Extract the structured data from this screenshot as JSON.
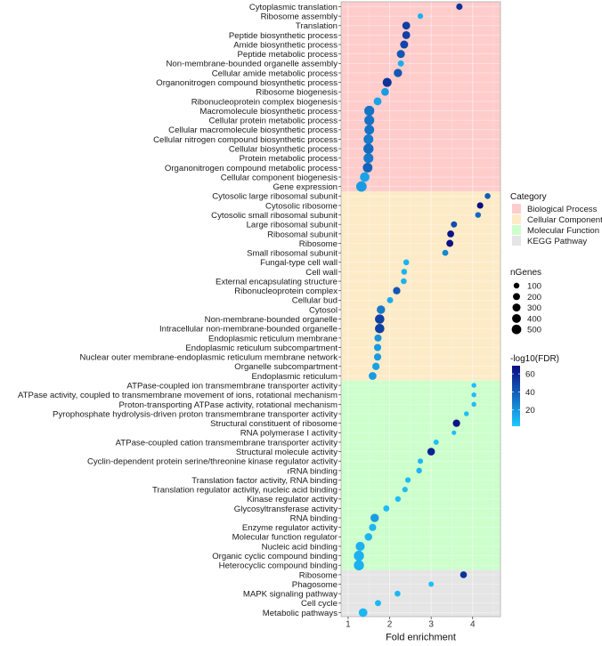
{
  "chart_data": {
    "type": "scatter",
    "title": "",
    "xlabel": "Fold enrichment",
    "ylabel": "",
    "xlim": [
      0.83,
      4.67
    ],
    "xticks": [
      1,
      2,
      3,
      4
    ],
    "grid": true,
    "categories": [
      {
        "name": "Biological Process",
        "color": "#ffcccc",
        "terms": [
          {
            "term": "Cytoplasmic translation",
            "fold": 3.68,
            "nGenes": 120,
            "log10FDR": 55
          },
          {
            "term": "Ribosome assembly",
            "fold": 2.74,
            "nGenes": 70,
            "log10FDR": 10
          },
          {
            "term": "Translation",
            "fold": 2.4,
            "nGenes": 250,
            "log10FDR": 50
          },
          {
            "term": "Peptide biosynthetic process",
            "fold": 2.4,
            "nGenes": 250,
            "log10FDR": 50
          },
          {
            "term": "Amide biosynthetic process",
            "fold": 2.35,
            "nGenes": 260,
            "log10FDR": 48
          },
          {
            "term": "Peptide metabolic process",
            "fold": 2.27,
            "nGenes": 270,
            "log10FDR": 42
          },
          {
            "term": "Non-membrane-bounded organelle assembly",
            "fold": 2.27,
            "nGenes": 110,
            "log10FDR": 12
          },
          {
            "term": "Cellular amide metabolic process",
            "fold": 2.2,
            "nGenes": 290,
            "log10FDR": 42
          },
          {
            "term": "Organonitrogen compound biosynthetic process",
            "fold": 1.94,
            "nGenes": 370,
            "log10FDR": 55
          },
          {
            "term": "Ribosome biogenesis",
            "fold": 1.89,
            "nGenes": 230,
            "log10FDR": 18
          },
          {
            "term": "Ribonucleoprotein complex biogenesis",
            "fold": 1.71,
            "nGenes": 250,
            "log10FDR": 15
          },
          {
            "term": "Macromolecule biosynthetic process",
            "fold": 1.51,
            "nGenes": 510,
            "log10FDR": 32
          },
          {
            "term": "Cellular protein metabolic process",
            "fold": 1.51,
            "nGenes": 490,
            "log10FDR": 32
          },
          {
            "term": "Cellular macromolecule biosynthetic process",
            "fold": 1.51,
            "nGenes": 460,
            "log10FDR": 32
          },
          {
            "term": "Cellular nitrogen compound biosynthetic process",
            "fold": 1.49,
            "nGenes": 470,
            "log10FDR": 30
          },
          {
            "term": "Cellular biosynthetic process",
            "fold": 1.49,
            "nGenes": 520,
            "log10FDR": 35
          },
          {
            "term": "Protein metabolic process",
            "fold": 1.49,
            "nGenes": 480,
            "log10FDR": 30
          },
          {
            "term": "Organonitrogen compound metabolic process",
            "fold": 1.47,
            "nGenes": 450,
            "log10FDR": 38
          },
          {
            "term": "Cellular component biogenesis",
            "fold": 1.4,
            "nGenes": 430,
            "log10FDR": 15
          },
          {
            "term": "Gene expression",
            "fold": 1.32,
            "nGenes": 560,
            "log10FDR": 18
          }
        ]
      },
      {
        "name": "Cellular Component",
        "color": "#fdebc8",
        "terms": [
          {
            "term": "Cytosolic large ribosomal subunit",
            "fold": 4.36,
            "nGenes": 90,
            "log10FDR": 40
          },
          {
            "term": "Cytosolic ribosome",
            "fold": 4.18,
            "nGenes": 120,
            "log10FDR": 68
          },
          {
            "term": "Cytosolic small ribosomal subunit",
            "fold": 4.13,
            "nGenes": 80,
            "log10FDR": 35
          },
          {
            "term": "Large ribosomal subunit",
            "fold": 3.55,
            "nGenes": 110,
            "log10FDR": 45
          },
          {
            "term": "Ribosomal subunit",
            "fold": 3.47,
            "nGenes": 160,
            "log10FDR": 65
          },
          {
            "term": "Ribosome",
            "fold": 3.45,
            "nGenes": 170,
            "log10FDR": 66
          },
          {
            "term": "Small ribosomal subunit",
            "fold": 3.34,
            "nGenes": 100,
            "log10FDR": 25
          },
          {
            "term": "Fungal-type cell wall",
            "fold": 2.4,
            "nGenes": 90,
            "log10FDR": 10
          },
          {
            "term": "Cell wall",
            "fold": 2.35,
            "nGenes": 90,
            "log10FDR": 10
          },
          {
            "term": "External encapsulating structure",
            "fold": 2.34,
            "nGenes": 90,
            "log10FDR": 10
          },
          {
            "term": "Ribonucleoprotein complex",
            "fold": 2.17,
            "nGenes": 200,
            "log10FDR": 42
          },
          {
            "term": "Cellular bud",
            "fold": 2.01,
            "nGenes": 110,
            "log10FDR": 12
          },
          {
            "term": "Cytosol",
            "fold": 1.79,
            "nGenes": 300,
            "log10FDR": 30
          },
          {
            "term": "Non-membrane-bounded organelle",
            "fold": 1.76,
            "nGenes": 420,
            "log10FDR": 50
          },
          {
            "term": "Intracellular non-membrane-bounded organelle",
            "fold": 1.76,
            "nGenes": 420,
            "log10FDR": 50
          },
          {
            "term": "Endoplasmic reticulum membrane",
            "fold": 1.72,
            "nGenes": 180,
            "log10FDR": 20
          },
          {
            "term": "Endoplasmic reticulum subcompartment",
            "fold": 1.71,
            "nGenes": 190,
            "log10FDR": 18
          },
          {
            "term": "Nuclear outer membrane-endoplasmic reticulum membrane network",
            "fold": 1.71,
            "nGenes": 190,
            "log10FDR": 18
          },
          {
            "term": "Organelle subcompartment",
            "fold": 1.67,
            "nGenes": 200,
            "log10FDR": 16
          },
          {
            "term": "Endoplasmic reticulum",
            "fold": 1.59,
            "nGenes": 240,
            "log10FDR": 18
          }
        ]
      },
      {
        "name": "Molecular Function",
        "color": "#ccffcc",
        "terms": [
          {
            "term": "ATPase-coupled ion transmembrane transporter activity",
            "fold": 4.03,
            "nGenes": 40,
            "log10FDR": 5
          },
          {
            "term": "ATPase activity, coupled to transmembrane movement of ions, rotational mechanism",
            "fold": 4.03,
            "nGenes": 40,
            "log10FDR": 5
          },
          {
            "term": "Proton-transporting ATPase activity, rotational mechanism",
            "fold": 4.03,
            "nGenes": 40,
            "log10FDR": 5
          },
          {
            "term": "Pyrophosphate hydrolysis-driven proton transmembrane transporter activity",
            "fold": 3.85,
            "nGenes": 40,
            "log10FDR": 5
          },
          {
            "term": "Structural constituent of ribosome",
            "fold": 3.61,
            "nGenes": 200,
            "log10FDR": 65
          },
          {
            "term": "RNA polymerase I activity",
            "fold": 3.55,
            "nGenes": 30,
            "log10FDR": 5
          },
          {
            "term": "ATPase-coupled cation transmembrane transporter activity",
            "fold": 3.12,
            "nGenes": 60,
            "log10FDR": 6
          },
          {
            "term": "Structural molecule activity",
            "fold": 3.0,
            "nGenes": 220,
            "log10FDR": 60
          },
          {
            "term": "Cyclin-dependent protein serine/threonine kinase regulator activity",
            "fold": 2.74,
            "nGenes": 60,
            "log10FDR": 8
          },
          {
            "term": "rRNA binding",
            "fold": 2.71,
            "nGenes": 80,
            "log10FDR": 8
          },
          {
            "term": "Translation factor activity, RNA binding",
            "fold": 2.44,
            "nGenes": 70,
            "log10FDR": 6
          },
          {
            "term": "Translation regulator activity, nucleic acid binding",
            "fold": 2.37,
            "nGenes": 70,
            "log10FDR": 6
          },
          {
            "term": "Kinase regulator activity",
            "fold": 2.2,
            "nGenes": 80,
            "log10FDR": 6
          },
          {
            "term": "Glycosyltransferase activity",
            "fold": 1.92,
            "nGenes": 110,
            "log10FDR": 6
          },
          {
            "term": "RNA binding",
            "fold": 1.64,
            "nGenes": 300,
            "log10FDR": 18
          },
          {
            "term": "Enzyme regulator activity",
            "fold": 1.59,
            "nGenes": 190,
            "log10FDR": 8
          },
          {
            "term": "Molecular function regulator",
            "fold": 1.49,
            "nGenes": 220,
            "log10FDR": 8
          },
          {
            "term": "Nucleic acid binding",
            "fold": 1.29,
            "nGenes": 380,
            "log10FDR": 10
          },
          {
            "term": "Organic cyclic compound binding",
            "fold": 1.26,
            "nGenes": 520,
            "log10FDR": 10
          },
          {
            "term": "Heterocyclic compound binding",
            "fold": 1.26,
            "nGenes": 520,
            "log10FDR": 10
          }
        ]
      },
      {
        "name": "KEGG Pathway",
        "color": "#e5e5e5",
        "terms": [
          {
            "term": "Ribosome",
            "fold": 3.78,
            "nGenes": 150,
            "log10FDR": 55
          },
          {
            "term": "Phagosome",
            "fold": 3.0,
            "nGenes": 60,
            "log10FDR": 5
          },
          {
            "term": "MAPK signaling pathway",
            "fold": 2.19,
            "nGenes": 90,
            "log10FDR": 8
          },
          {
            "term": "Cell cycle",
            "fold": 1.72,
            "nGenes": 110,
            "log10FDR": 8
          },
          {
            "term": "Metabolic pathways",
            "fold": 1.36,
            "nGenes": 330,
            "log10FDR": 8
          }
        ]
      }
    ],
    "legend": {
      "placement": "right",
      "category_title": "Category",
      "size_title": "nGenes",
      "size_values": [
        100,
        200,
        300,
        400,
        500
      ],
      "color_title": "-log10(FDR)",
      "color_ticks": [
        20,
        40,
        60
      ],
      "color_range": [
        2,
        69
      ],
      "color_low": "#1ec8ff",
      "color_high": "#0a0a80"
    }
  }
}
